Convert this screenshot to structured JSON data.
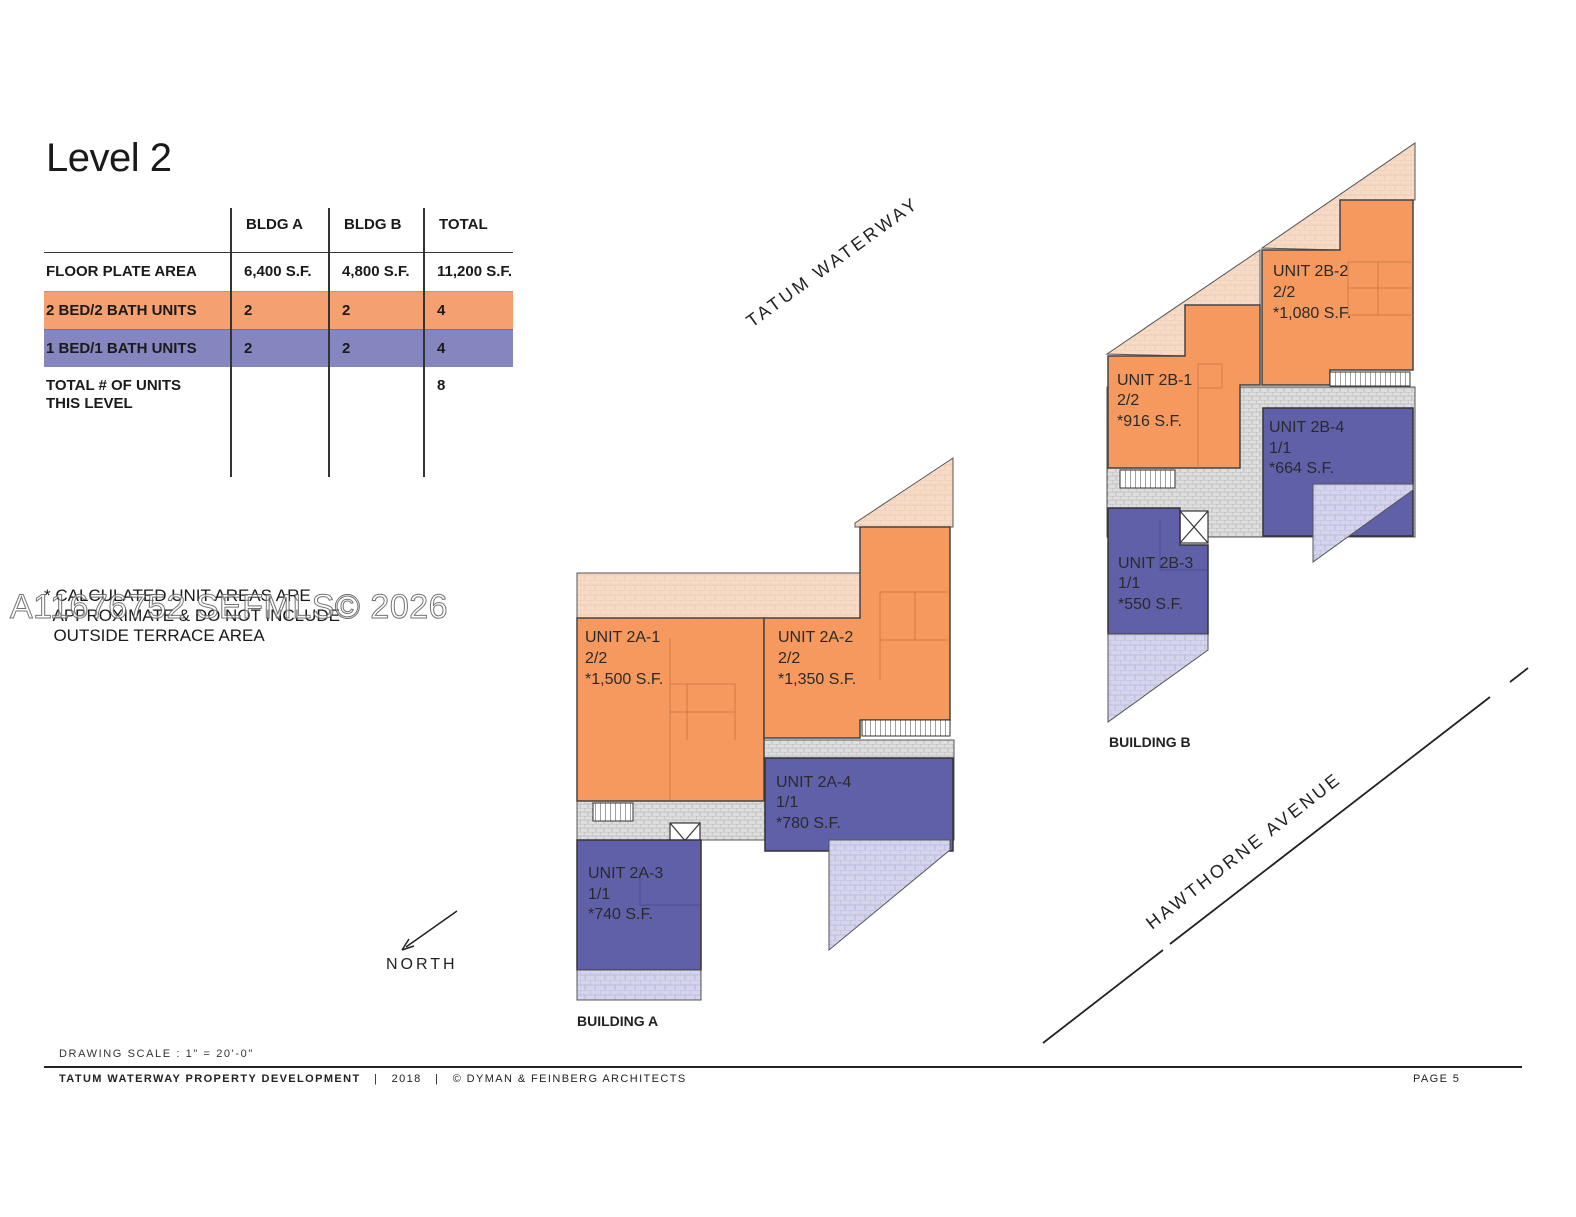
{
  "title": "Level 2",
  "table": {
    "headers": [
      "",
      "BLDG A",
      "BLDG B",
      "TOTAL"
    ],
    "rows": [
      {
        "label": "FLOOR PLATE AREA",
        "a": "6,400 S.F.",
        "b": "4,800 S.F.",
        "total": "11,200 S.F."
      },
      {
        "label": "2 BED/2 BATH UNITS",
        "a": "2",
        "b": "2",
        "total": "4",
        "color": "#f5a070"
      },
      {
        "label": "1 BED/1 BATH UNITS",
        "a": "2",
        "b": "2",
        "total": "4",
        "color": "#8585c0"
      },
      {
        "label": "TOTAL # OF UNITS\nTHIS LEVEL",
        "a": "",
        "b": "",
        "total": "8"
      }
    ]
  },
  "note": "* CALCULATED UNIT AREAS ARE\n  APPROXIMATE & DO NOT INCLUDE\n  OUTSIDE TERRACE AREA",
  "watermark": "A11676752 SEFMLS© 2026",
  "colors": {
    "two_bed": "#f5a070",
    "one_bed": "#6060a8",
    "terrace_orange": "#f6dcc8",
    "terrace_purple": "#d4d4ec",
    "corridor": "#d8d8d8"
  },
  "plan": {
    "streets": {
      "waterway": "TATUM WATERWAY",
      "avenue": "HAWTHORNE AVENUE"
    },
    "buildings": {
      "a": "BUILDING A",
      "b": "BUILDING B"
    },
    "north": "NORTH",
    "units": {
      "u2a1": {
        "name": "UNIT 2A-1",
        "type": "2/2",
        "area": "*1,500 S.F."
      },
      "u2a2": {
        "name": "UNIT 2A-2",
        "type": "2/2",
        "area": "*1,350 S.F."
      },
      "u2a3": {
        "name": "UNIT 2A-3",
        "type": "1/1",
        "area": "*740 S.F."
      },
      "u2a4": {
        "name": "UNIT 2A-4",
        "type": "1/1",
        "area": "*780 S.F."
      },
      "u2b1": {
        "name": "UNIT 2B-1",
        "type": "2/2",
        "area": "*916 S.F."
      },
      "u2b2": {
        "name": "UNIT 2B-2",
        "type": "2/2",
        "area": "*1,080 S.F."
      },
      "u2b3": {
        "name": "UNIT 2B-3",
        "type": "1/1",
        "area": "*550 S.F."
      },
      "u2b4": {
        "name": "UNIT 2B-4",
        "type": "1/1",
        "area": "*664 S.F."
      }
    }
  },
  "footer": {
    "scale": "DRAWING SCALE :  1\" = 20'-0\"",
    "project": "TATUM WATERWAY PROPERTY DEVELOPMENT",
    "year": "2018",
    "architect": "© DYMAN & FEINBERG ARCHITECTS",
    "page": "PAGE 5"
  }
}
